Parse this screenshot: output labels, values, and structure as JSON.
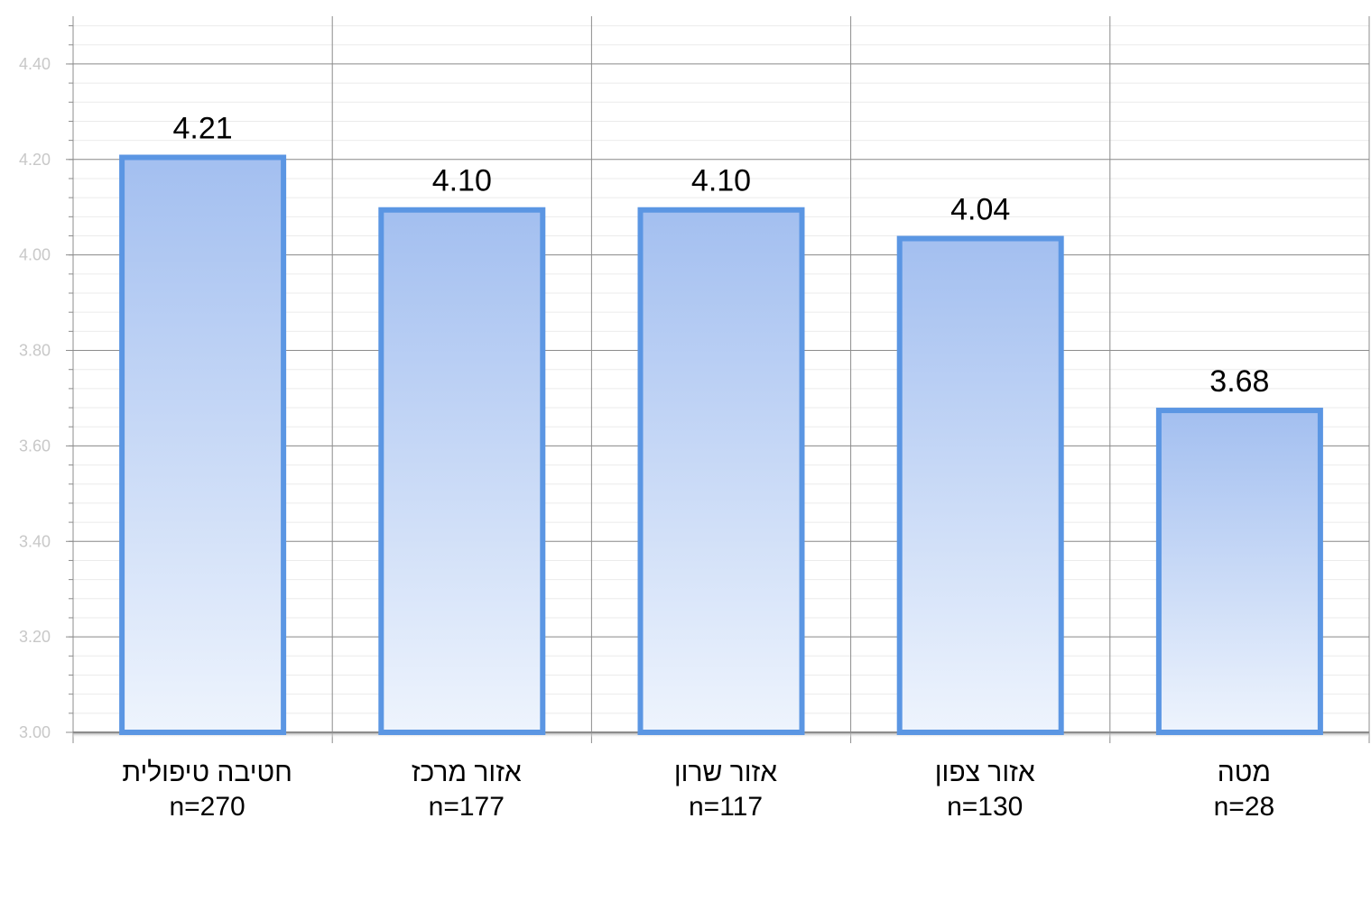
{
  "chart_data": {
    "type": "bar",
    "categories": [
      {
        "label": "חטיבה טיפולית",
        "n": "n=270"
      },
      {
        "label": "אזור מרכז",
        "n": "n=177"
      },
      {
        "label": "אזור שרון",
        "n": "n=117"
      },
      {
        "label": "אזור צפון",
        "n": "n=130"
      },
      {
        "label": "מטה",
        "n": "n=28"
      }
    ],
    "values": [
      4.21,
      4.1,
      4.1,
      4.04,
      3.68
    ],
    "value_labels": [
      "4.21",
      "4.10",
      "4.10",
      "4.04",
      "3.68"
    ],
    "ylim": [
      3.0,
      4.5
    ],
    "yticks": [
      "3.00",
      "3.20",
      "3.40",
      "3.60",
      "3.80",
      "4.00",
      "4.20",
      "4.40"
    ],
    "title": "",
    "xlabel": "",
    "ylabel": "",
    "grid": true,
    "legend": "none",
    "colors": {
      "bar_border": "#5b96e3",
      "bar_fill_top": "#a3bff0",
      "bar_fill_bottom": "#eef4fd",
      "major_grid": "#8c8c8c",
      "minor_grid": "#ebebeb"
    }
  }
}
